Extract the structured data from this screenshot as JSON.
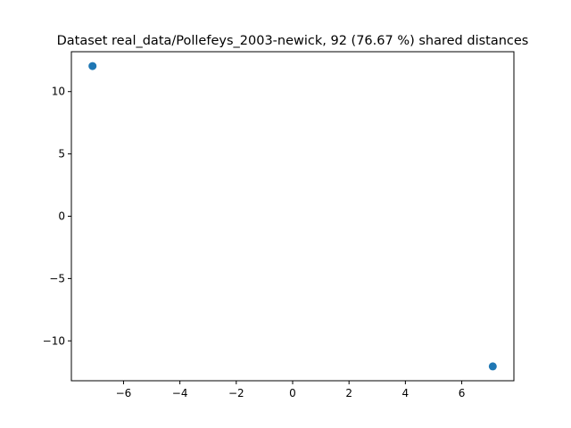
{
  "chart_data": {
    "type": "scatter",
    "title": "Dataset real_data/Pollefeys_2003-newick, 92 (76.67 %) shared distances",
    "xlabel": "",
    "ylabel": "",
    "xlim": [
      -7.85,
      7.85
    ],
    "ylim": [
      -13.2,
      13.2
    ],
    "x_ticks": [
      -6,
      -4,
      -2,
      0,
      2,
      4,
      6
    ],
    "y_ticks": [
      -10,
      -5,
      0,
      5,
      10
    ],
    "x_tick_labels": [
      "−6",
      "−4",
      "−2",
      "0",
      "2",
      "4",
      "6"
    ],
    "y_tick_labels": [
      "−10",
      "−5",
      "0",
      "5",
      "10"
    ],
    "grid": false,
    "legend": "none",
    "series": [
      {
        "color": "#1f77b4",
        "points": [
          {
            "x": -7.1,
            "y": 12.05
          },
          {
            "x": 7.1,
            "y": -12.05
          }
        ]
      }
    ]
  }
}
